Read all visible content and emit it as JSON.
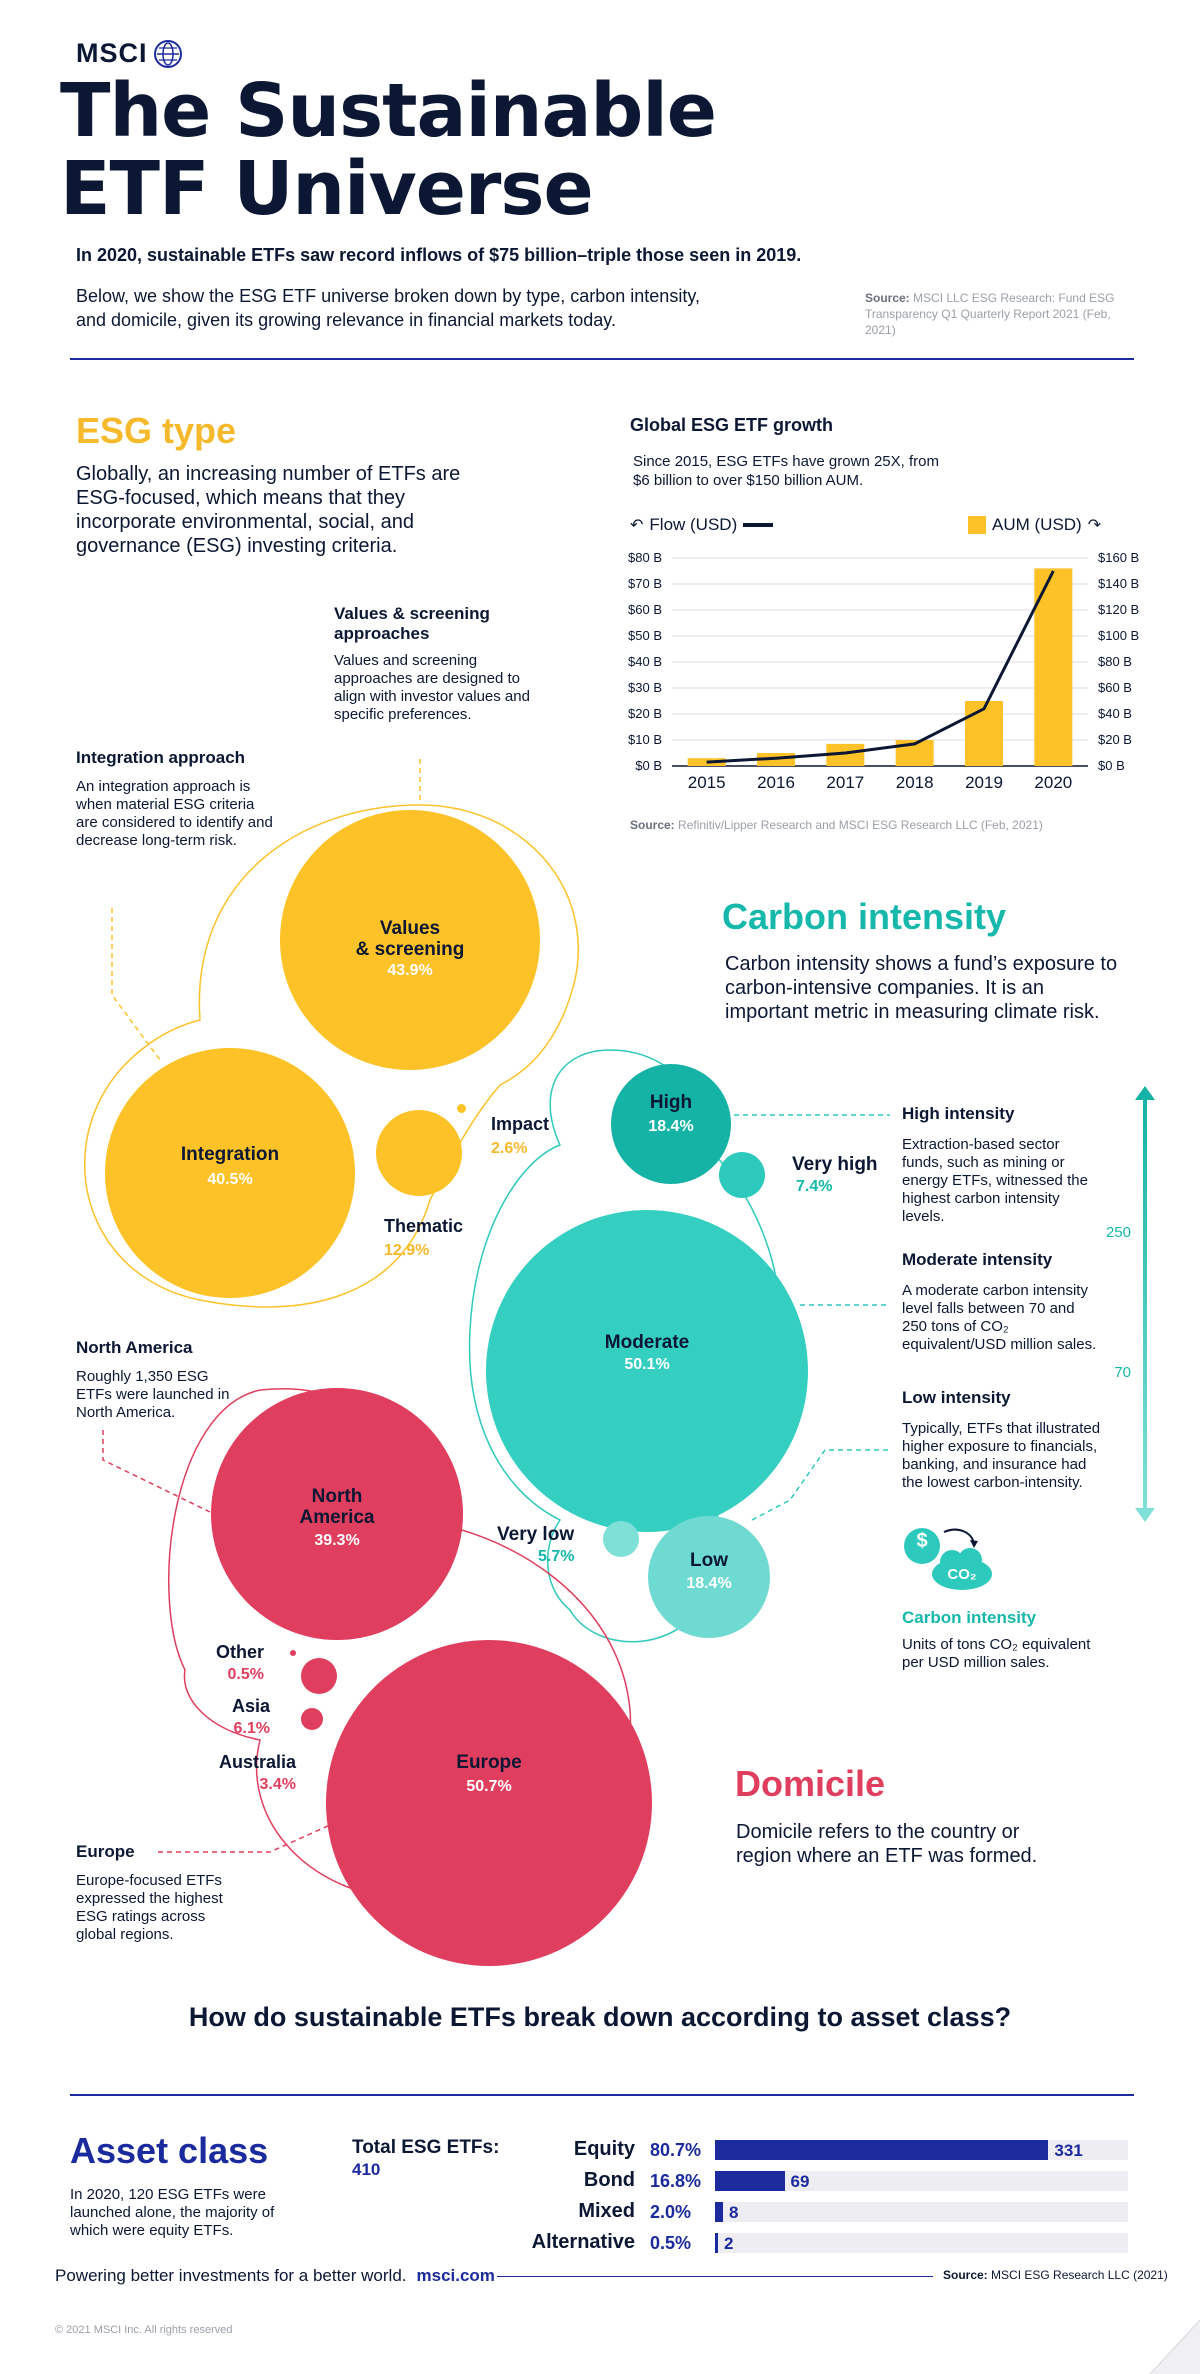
{
  "brand": {
    "name": "MSCI"
  },
  "title": {
    "line1": "The Sustainable",
    "line2": "ETF Universe"
  },
  "intro": {
    "headline": "In 2020, sustainable ETFs saw record inflows of $75 billion–triple those seen in 2019.",
    "body": "Below, we show the ESG ETF universe broken down by type, carbon intensity, and domicile, given its growing relevance in financial markets today.",
    "source_label": "Source:",
    "source_text": "MSCI LLC ESG Research: Fund ESG Transparency Q1 Quarterly Report 2021 (Feb, 2021)"
  },
  "esg_type": {
    "heading": "ESG type",
    "description": "Globally, an increasing number of ETFs are ESG-focused, which means that they incorporate environmental, social, and governance (ESG) investing criteria.",
    "values_note_title": "Values & screening approaches",
    "values_note_text": "Values and screening approaches are designed to align with investor values and specific preferences.",
    "integration_note_title": "Integration approach",
    "integration_note_text": "An integration approach is when material ESG criteria are considered to identify and decrease long-term risk.",
    "bubbles": [
      {
        "name": "Values\n& screening",
        "pct": "43.9%"
      },
      {
        "name": "Integration",
        "pct": "40.5%"
      },
      {
        "name": "Impact",
        "pct": "2.6%"
      },
      {
        "name": "Thematic",
        "pct": "12.9%"
      }
    ],
    "color": "#fdc228"
  },
  "growth_chart": {
    "title": "Global ESG ETF growth",
    "subtitle": "Since 2015, ESG ETFs have grown 25X, from $6 billion to over $150 billion AUM.",
    "legend_flow": "Flow (USD)",
    "legend_aum": "AUM (USD)",
    "source_label": "Source:",
    "source_text": "Refinitiv/Lipper Research and MSCI ESG Research LLC  (Feb, 2021)"
  },
  "chart_data": {
    "type": "bar",
    "categories": [
      "2015",
      "2016",
      "2017",
      "2018",
      "2019",
      "2020"
    ],
    "series": [
      {
        "name": "AUM (USD)",
        "type": "bar",
        "axis": "right",
        "values": [
          6,
          10,
          17,
          20,
          50,
          152
        ],
        "color": "#fdc228"
      },
      {
        "name": "Flow (USD)",
        "type": "line",
        "axis": "left",
        "values": [
          1.5,
          3,
          5,
          8.5,
          22,
          75
        ],
        "color": "#0b1733"
      }
    ],
    "left_axis": {
      "ticks": [
        "$0 B",
        "$10 B",
        "$20 B",
        "$30 B",
        "$40 B",
        "$50 B",
        "$60 B",
        "$70 B",
        "$80 B"
      ],
      "ylim": [
        0,
        80
      ]
    },
    "right_axis": {
      "ticks": [
        "$0 B",
        "$20 B",
        "$40 B",
        "$60 B",
        "$80 B",
        "$100 B",
        "$120 B",
        "$140 B",
        "$160 B"
      ],
      "ylim": [
        0,
        160
      ]
    },
    "grid": true
  },
  "carbon": {
    "heading": "Carbon intensity",
    "description": "Carbon intensity shows a fund’s exposure to carbon-intensive companies. It is an important metric in measuring climate risk.",
    "bubbles": [
      {
        "name": "High",
        "pct": "18.4%"
      },
      {
        "name": "Very high",
        "pct": "7.4%"
      },
      {
        "name": "Moderate",
        "pct": "50.1%"
      },
      {
        "name": "Very low",
        "pct": "5.7%"
      },
      {
        "name": "Low",
        "pct": "18.4%"
      }
    ],
    "notes": [
      {
        "title": "High intensity",
        "text": "Extraction-based sector funds, such as mining or energy ETFs, witnessed the highest carbon intensity levels."
      },
      {
        "title": "Moderate intensity",
        "text": "A moderate carbon intensity level falls between 70 and 250 tons of CO₂ equivalent/USD million sales."
      },
      {
        "title": "Low intensity",
        "text": "Typically, ETFs that illustrated higher exposure to financials, banking, and insurance had the lowest carbon-intensity."
      }
    ],
    "scale_high": "250",
    "scale_low": "70",
    "icon_title": "Carbon intensity",
    "icon_text": "Units of tons CO₂ equivalent per USD million sales.",
    "icon_co2": "CO₂",
    "icon_dollar": "$",
    "color": "#2ec9bd"
  },
  "domicile": {
    "heading": "Domicile",
    "description": "Domicile refers to the country or region where an ETF was formed.",
    "na_note_title": "North America",
    "na_note_text": "Roughly 1,350 ESG ETFs were launched in North America.",
    "eu_note_title": "Europe",
    "eu_note_text": "Europe-focused ETFs expressed the highest ESG ratings across global regions.",
    "bubbles": [
      {
        "name": "North\nAmerica",
        "pct": "39.3%"
      },
      {
        "name": "Other",
        "pct": "0.5%"
      },
      {
        "name": "Asia",
        "pct": "6.1%"
      },
      {
        "name": "Australia",
        "pct": "3.4%"
      },
      {
        "name": "Europe",
        "pct": "50.7%"
      }
    ],
    "color": "#e03e5e"
  },
  "asset_class": {
    "question": "How do sustainable ETFs break down according to asset class?",
    "heading": "Asset class",
    "description": "In 2020, 120 ESG ETFs were launched alone, the majority of which were equity ETFs.",
    "total_label": "Total ESG ETFs:",
    "total_value": "410",
    "rows": [
      {
        "name": "Equity",
        "pct": "80.7%",
        "count": 331,
        "label": "331"
      },
      {
        "name": "Bond",
        "pct": "16.8%",
        "count": 69,
        "label": "69"
      },
      {
        "name": "Mixed",
        "pct": "2.0%",
        "count": 8,
        "label": "8"
      },
      {
        "name": "Alternative",
        "pct": "0.5%",
        "count": 2,
        "label": "2"
      }
    ],
    "color": "#1b2a9c"
  },
  "footer": {
    "tagline": "Powering better investments for a better world.",
    "url": "msci.com",
    "source_label": "Source:",
    "source_text": "MSCI ESG Research LLC (2021)",
    "copyright": "© 2021 MSCI Inc. All rights reserved"
  }
}
